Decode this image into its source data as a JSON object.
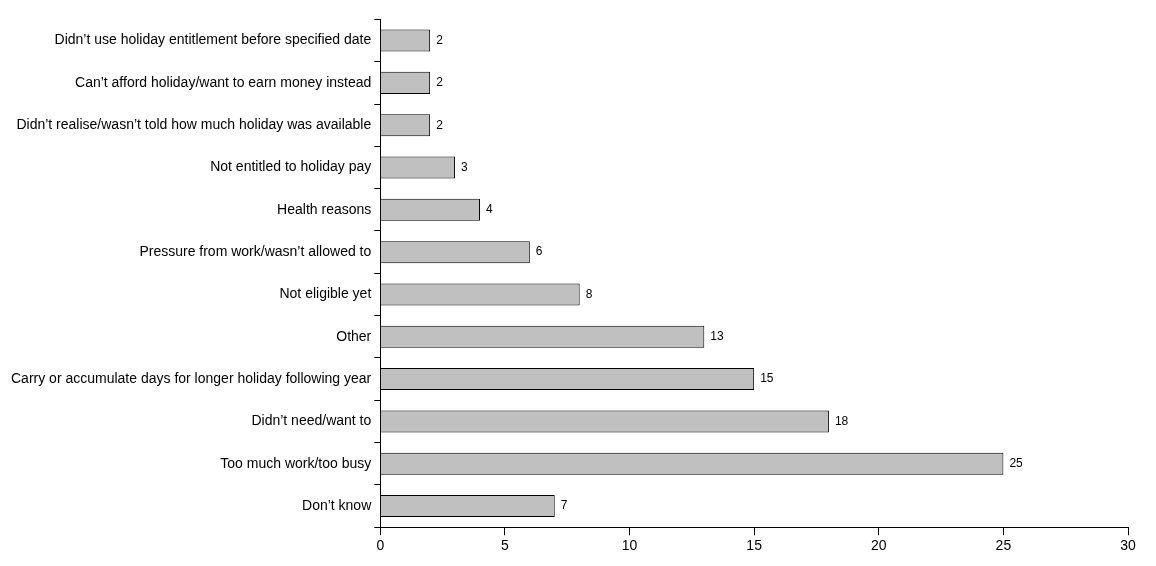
{
  "chart_data": {
    "type": "bar",
    "orientation": "horizontal",
    "categories": [
      "Didn’t use holiday entitlement before specified date",
      "Can’t afford holiday/want to earn money instead",
      "Didn’t realise/wasn’t told how much holiday was available",
      "Not entitled to holiday pay",
      "Health reasons",
      "Pressure from work/wasn’t allowed to",
      "Not eligible yet",
      "Other",
      "Carry or accumulate days for longer holiday following year",
      "Didn’t need/want to",
      "Too much work/too busy",
      "Don’t know"
    ],
    "values": [
      2,
      2,
      2,
      3,
      4,
      6,
      8,
      13,
      15,
      18,
      25,
      7
    ],
    "color": "#c0c0c0",
    "xlim": [
      0,
      30
    ],
    "xticks": [
      0,
      5,
      10,
      15,
      20,
      25,
      30
    ],
    "grid": false,
    "legend": false,
    "data_labels": true
  }
}
